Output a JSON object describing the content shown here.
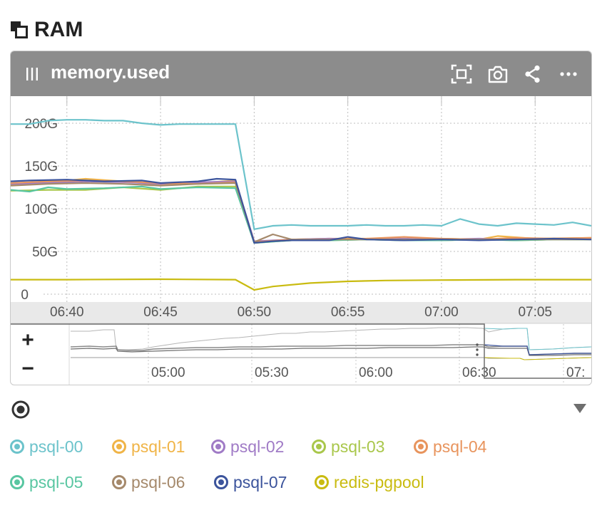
{
  "section": {
    "title": "RAM",
    "icon": "overlap-squares-icon"
  },
  "panel": {
    "title": "memory.used",
    "header_bg": "#8c8c8c",
    "actions": [
      {
        "name": "fullscreen-icon"
      },
      {
        "name": "camera-icon"
      },
      {
        "name": "share-icon"
      },
      {
        "name": "more-icon"
      }
    ]
  },
  "chart_data": {
    "type": "line",
    "title": "memory.used",
    "ylabel": "",
    "xlabel": "",
    "ylim": [
      0,
      230
    ],
    "yticks": [
      {
        "v": 0,
        "label": "0"
      },
      {
        "v": 50,
        "label": "50G"
      },
      {
        "v": 100,
        "label": "100G"
      },
      {
        "v": 150,
        "label": "150G"
      },
      {
        "v": 200,
        "label": "200G"
      }
    ],
    "xlim": [
      "06:37",
      "07:08"
    ],
    "xticks": [
      "06:40",
      "06:45",
      "06:50",
      "06:55",
      "07:00",
      "07:05"
    ],
    "grid": true,
    "series": [
      {
        "name": "psql-00",
        "color": "#6cc3cb",
        "points": [
          [
            "06:37",
            199
          ],
          [
            "06:38",
            199
          ],
          [
            "06:39",
            203
          ],
          [
            "06:40",
            204
          ],
          [
            "06:41",
            204
          ],
          [
            "06:42",
            203
          ],
          [
            "06:43",
            203
          ],
          [
            "06:44",
            200
          ],
          [
            "06:45",
            198
          ],
          [
            "06:46",
            199
          ],
          [
            "06:47",
            199
          ],
          [
            "06:48",
            199
          ],
          [
            "06:49",
            199
          ],
          [
            "06:50",
            76
          ],
          [
            "06:51",
            80
          ],
          [
            "06:52",
            81
          ],
          [
            "06:53",
            80
          ],
          [
            "06:54",
            80
          ],
          [
            "06:55",
            80
          ],
          [
            "06:56",
            81
          ],
          [
            "06:57",
            80
          ],
          [
            "06:58",
            80
          ],
          [
            "06:59",
            81
          ],
          [
            "07:00",
            80
          ],
          [
            "07:01",
            88
          ],
          [
            "07:02",
            82
          ],
          [
            "07:03",
            80
          ],
          [
            "07:04",
            83
          ],
          [
            "07:05",
            82
          ],
          [
            "07:06",
            81
          ],
          [
            "07:07",
            84
          ],
          [
            "07:08",
            80
          ]
        ]
      },
      {
        "name": "psql-01",
        "color": "#f0b447",
        "points": [
          [
            "06:37",
            128
          ],
          [
            "06:39",
            131
          ],
          [
            "06:41",
            135
          ],
          [
            "06:43",
            132
          ],
          [
            "06:45",
            128
          ],
          [
            "06:47",
            130
          ],
          [
            "06:49",
            133
          ],
          [
            "06:50",
            61
          ],
          [
            "06:52",
            64
          ],
          [
            "06:54",
            65
          ],
          [
            "06:56",
            65
          ],
          [
            "06:58",
            64
          ],
          [
            "07:00",
            65
          ],
          [
            "07:02",
            64
          ],
          [
            "07:03",
            68
          ],
          [
            "07:05",
            65
          ],
          [
            "07:08",
            66
          ]
        ]
      },
      {
        "name": "psql-02",
        "color": "#a07bc6",
        "points": [
          [
            "06:37",
            129
          ],
          [
            "06:39",
            130
          ],
          [
            "06:41",
            132
          ],
          [
            "06:43",
            131
          ],
          [
            "06:45",
            129
          ],
          [
            "06:47",
            131
          ],
          [
            "06:49",
            132
          ],
          [
            "06:50",
            62
          ],
          [
            "06:52",
            64
          ],
          [
            "06:54",
            65
          ],
          [
            "06:56",
            64
          ],
          [
            "06:58",
            65
          ],
          [
            "07:00",
            64
          ],
          [
            "07:02",
            65
          ],
          [
            "07:04",
            64
          ],
          [
            "07:06",
            65
          ],
          [
            "07:08",
            65
          ]
        ]
      },
      {
        "name": "psql-03",
        "color": "#a9c74b",
        "points": [
          [
            "06:37",
            121
          ],
          [
            "06:39",
            122
          ],
          [
            "06:41",
            122
          ],
          [
            "06:43",
            125
          ],
          [
            "06:45",
            122
          ],
          [
            "06:47",
            126
          ],
          [
            "06:49",
            126
          ],
          [
            "06:50",
            60
          ],
          [
            "06:52",
            63
          ],
          [
            "06:54",
            63
          ],
          [
            "06:56",
            64
          ],
          [
            "06:58",
            63
          ],
          [
            "07:00",
            63
          ],
          [
            "07:02",
            64
          ],
          [
            "07:04",
            63
          ],
          [
            "07:06",
            64
          ],
          [
            "07:08",
            64
          ]
        ]
      },
      {
        "name": "psql-04",
        "color": "#e8945d",
        "points": [
          [
            "06:37",
            130
          ],
          [
            "06:39",
            132
          ],
          [
            "06:41",
            133
          ],
          [
            "06:43",
            132
          ],
          [
            "06:45",
            130
          ],
          [
            "06:47",
            129
          ],
          [
            "06:49",
            131
          ],
          [
            "06:50",
            61
          ],
          [
            "06:52",
            64
          ],
          [
            "06:54",
            64
          ],
          [
            "06:56",
            65
          ],
          [
            "06:58",
            67
          ],
          [
            "07:00",
            65
          ],
          [
            "07:02",
            64
          ],
          [
            "07:04",
            66
          ],
          [
            "07:06",
            65
          ],
          [
            "07:08",
            66
          ]
        ]
      },
      {
        "name": "psql-05",
        "color": "#58c6a1",
        "points": [
          [
            "06:37",
            122
          ],
          [
            "06:38",
            120
          ],
          [
            "06:39",
            125
          ],
          [
            "06:40",
            123
          ],
          [
            "06:42",
            124
          ],
          [
            "06:44",
            126
          ],
          [
            "06:45",
            123
          ],
          [
            "06:47",
            125
          ],
          [
            "06:49",
            124
          ],
          [
            "06:50",
            60
          ],
          [
            "06:52",
            63
          ],
          [
            "06:54",
            63
          ],
          [
            "06:56",
            64
          ],
          [
            "06:58",
            63
          ],
          [
            "07:00",
            63
          ],
          [
            "07:02",
            64
          ],
          [
            "07:04",
            63
          ],
          [
            "07:06",
            64
          ],
          [
            "07:08",
            64
          ]
        ]
      },
      {
        "name": "psql-06",
        "color": "#a5896b",
        "points": [
          [
            "06:37",
            127
          ],
          [
            "06:39",
            129
          ],
          [
            "06:41",
            130
          ],
          [
            "06:43",
            129
          ],
          [
            "06:45",
            127
          ],
          [
            "06:47",
            129
          ],
          [
            "06:49",
            130
          ],
          [
            "06:50",
            61
          ],
          [
            "06:51",
            70
          ],
          [
            "06:52",
            64
          ],
          [
            "06:54",
            64
          ],
          [
            "06:56",
            64
          ],
          [
            "06:58",
            64
          ],
          [
            "07:00",
            64
          ],
          [
            "07:02",
            64
          ],
          [
            "07:04",
            64
          ],
          [
            "07:06",
            64
          ],
          [
            "07:08",
            64
          ]
        ]
      },
      {
        "name": "psql-07",
        "color": "#3c549c",
        "points": [
          [
            "06:37",
            132
          ],
          [
            "06:38",
            133
          ],
          [
            "06:40",
            134
          ],
          [
            "06:42",
            132
          ],
          [
            "06:44",
            133
          ],
          [
            "06:45",
            130
          ],
          [
            "06:47",
            132
          ],
          [
            "06:48",
            135
          ],
          [
            "06:49",
            134
          ],
          [
            "06:50",
            60
          ],
          [
            "06:51",
            62
          ],
          [
            "06:52",
            63
          ],
          [
            "06:54",
            63
          ],
          [
            "06:55",
            67
          ],
          [
            "06:56",
            64
          ],
          [
            "06:58",
            63
          ],
          [
            "07:00",
            64
          ],
          [
            "07:02",
            63
          ],
          [
            "07:04",
            64
          ],
          [
            "07:06",
            65
          ],
          [
            "07:08",
            64
          ]
        ]
      },
      {
        "name": "redis-pgpool",
        "color": "#c9bb10",
        "points": [
          [
            "06:37",
            17
          ],
          [
            "06:40",
            17
          ],
          [
            "06:45",
            17.5
          ],
          [
            "06:49",
            17
          ],
          [
            "06:50",
            5
          ],
          [
            "06:51",
            9
          ],
          [
            "06:53",
            13
          ],
          [
            "06:55",
            15
          ],
          [
            "06:57",
            16
          ],
          [
            "07:00",
            16.5
          ],
          [
            "07:04",
            17
          ],
          [
            "07:08",
            17
          ]
        ]
      }
    ]
  },
  "navigator": {
    "zoom_in": "+",
    "zoom_out": "−",
    "xticks": [
      "05:00",
      "05:30",
      "06:00",
      "06:30",
      "07:"
    ]
  },
  "legend": {
    "toggle_icon": "radio-target-icon",
    "expand_icon": "triangle-down-icon",
    "items": [
      {
        "name": "psql-00",
        "color": "#6cc3cb"
      },
      {
        "name": "psql-01",
        "color": "#f0b447"
      },
      {
        "name": "psql-02",
        "color": "#a07bc6"
      },
      {
        "name": "psql-03",
        "color": "#a9c74b"
      },
      {
        "name": "psql-04",
        "color": "#e8945d"
      },
      {
        "name": "psql-05",
        "color": "#58c6a1"
      },
      {
        "name": "psql-06",
        "color": "#a5896b"
      },
      {
        "name": "psql-07",
        "color": "#3c549c"
      },
      {
        "name": "redis-pgpool",
        "color": "#c9bb10"
      }
    ]
  }
}
